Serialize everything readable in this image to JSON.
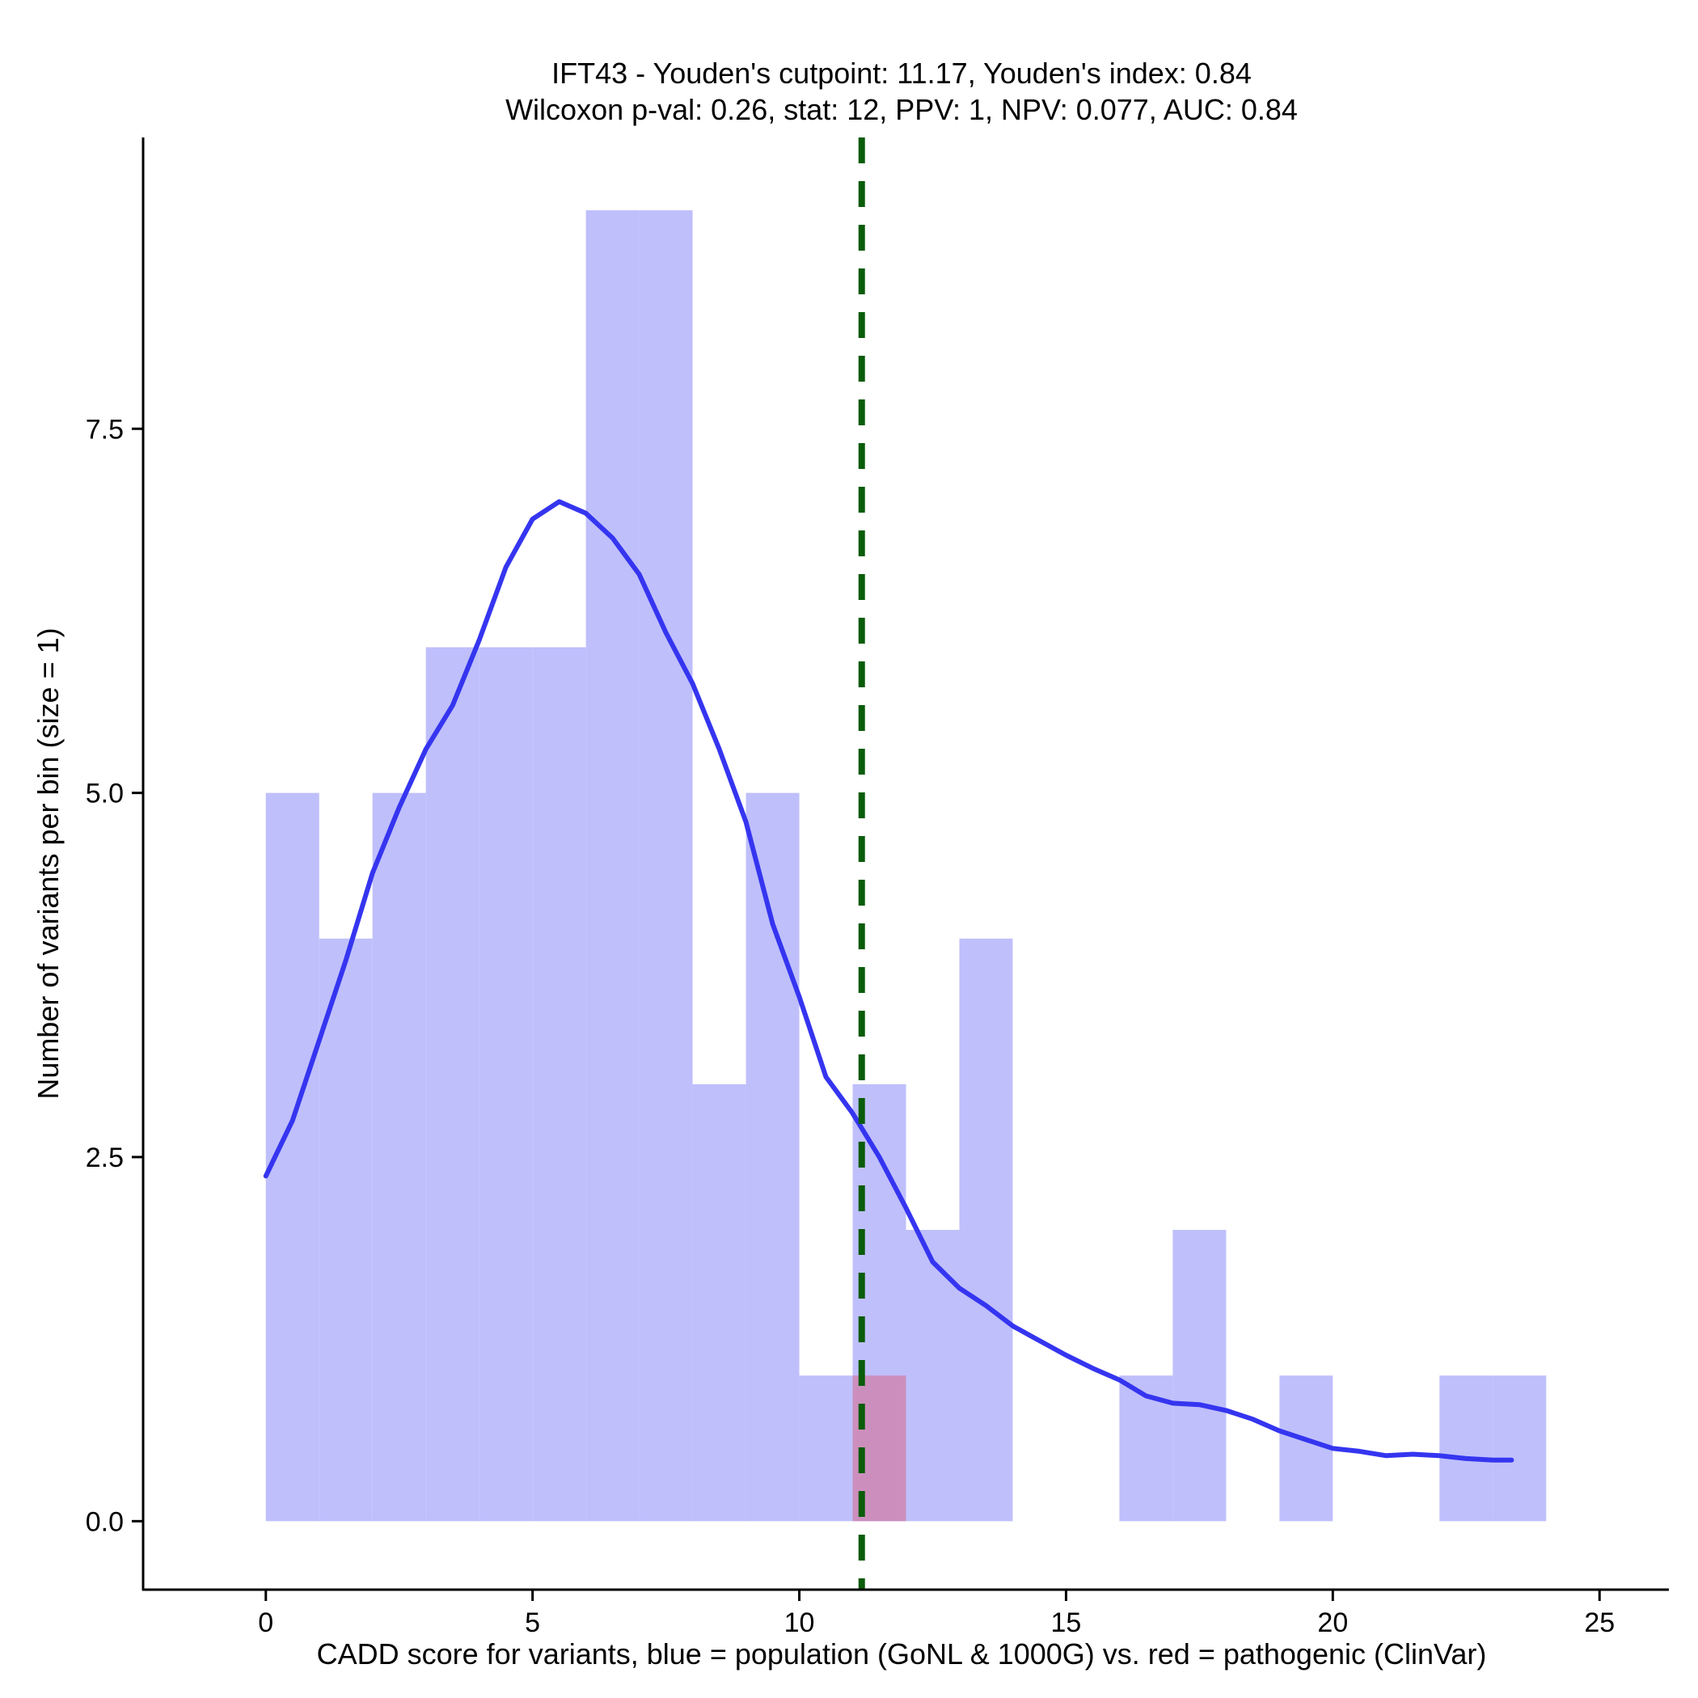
{
  "chart_data": {
    "type": "bar",
    "title": "IFT43 - Youden's cutpoint: 11.17, Youden's index: 0.84",
    "subtitle": "Wilcoxon p-val: 0.26, stat: 12, PPV: 1, NPV: 0.077, AUC: 0.84",
    "xlabel": "CADD score for variants, blue = population (GoNL & 1000G) vs. red = pathogenic (ClinVar)",
    "ylabel": "Number of variants per bin (size = 1)",
    "xlim": [
      -2.3,
      26.3
    ],
    "ylim": [
      -0.47,
      9.5
    ],
    "x_ticks": [
      0,
      5,
      10,
      15,
      20,
      25
    ],
    "x_tick_labels": [
      "0",
      "5",
      "10",
      "15",
      "20",
      "25"
    ],
    "y_ticks": [
      0,
      2.5,
      5,
      7.5
    ],
    "y_tick_labels": [
      "0.0",
      "2.5",
      "5.0",
      "7.5"
    ],
    "bin_width": 1,
    "cutpoint": 11.17,
    "series": [
      {
        "name": "population (GoNL & 1000G)",
        "color": "#bfbffc",
        "bins": [
          {
            "x0": 0,
            "x1": 1,
            "count": 5
          },
          {
            "x0": 1,
            "x1": 2,
            "count": 4
          },
          {
            "x0": 2,
            "x1": 3,
            "count": 5
          },
          {
            "x0": 3,
            "x1": 4,
            "count": 6
          },
          {
            "x0": 4,
            "x1": 5,
            "count": 6
          },
          {
            "x0": 5,
            "x1": 6,
            "count": 6
          },
          {
            "x0": 6,
            "x1": 7,
            "count": 9
          },
          {
            "x0": 7,
            "x1": 8,
            "count": 9
          },
          {
            "x0": 8,
            "x1": 9,
            "count": 3
          },
          {
            "x0": 9,
            "x1": 10,
            "count": 5
          },
          {
            "x0": 10,
            "x1": 11,
            "count": 1
          },
          {
            "x0": 11,
            "x1": 12,
            "count": 3
          },
          {
            "x0": 12,
            "x1": 13,
            "count": 2
          },
          {
            "x0": 13,
            "x1": 14,
            "count": 4
          },
          {
            "x0": 16,
            "x1": 17,
            "count": 1
          },
          {
            "x0": 17,
            "x1": 18,
            "count": 2
          },
          {
            "x0": 19,
            "x1": 20,
            "count": 1
          },
          {
            "x0": 22,
            "x1": 23,
            "count": 1
          },
          {
            "x0": 23,
            "x1": 24,
            "count": 1
          }
        ]
      },
      {
        "name": "pathogenic (ClinVar)",
        "color": "#cc8fbd",
        "bins": [
          {
            "x0": 11,
            "x1": 12,
            "count": 1
          }
        ]
      }
    ],
    "density_curve": {
      "name": "population density (scaled)",
      "color": "#3535f0",
      "x": [
        0,
        0.5,
        1,
        1.5,
        2,
        2.5,
        3,
        3.5,
        4,
        4.5,
        5,
        5.5,
        6,
        6.5,
        7,
        7.5,
        8,
        8.5,
        9,
        9.5,
        10,
        10.5,
        11,
        11.5,
        12,
        12.5,
        13,
        13.5,
        14,
        14.5,
        15,
        15.5,
        16,
        16.5,
        17,
        17.5,
        18,
        18.5,
        19,
        19.5,
        20,
        20.5,
        21,
        21.5,
        22,
        22.5,
        23,
        23.35
      ],
      "y": [
        2.37,
        2.75,
        3.3,
        3.85,
        4.45,
        4.9,
        5.3,
        5.6,
        6.05,
        6.55,
        6.88,
        7.0,
        6.92,
        6.75,
        6.5,
        6.1,
        5.75,
        5.3,
        4.8,
        4.1,
        3.6,
        3.05,
        2.8,
        2.5,
        2.15,
        1.78,
        1.6,
        1.48,
        1.34,
        1.24,
        1.14,
        1.05,
        0.97,
        0.86,
        0.81,
        0.8,
        0.76,
        0.7,
        0.62,
        0.56,
        0.5,
        0.48,
        0.45,
        0.46,
        0.45,
        0.43,
        0.42,
        0.42
      ]
    }
  }
}
